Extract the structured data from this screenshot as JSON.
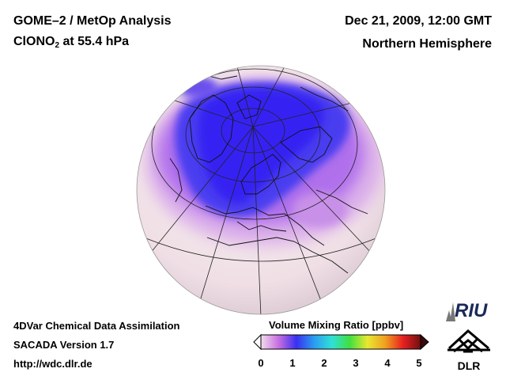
{
  "header": {
    "title_line1": "GOME–2 / MetOp Analysis",
    "species_main": "ClONO",
    "species_sub": "2",
    "species_rest": " at 55.4 hPa",
    "datetime": "Dec 21, 2009, 12:00 GMT",
    "region": "Northern Hemisphere"
  },
  "footer": {
    "line1": "4DVar Chemical Data Assimilation",
    "line2": "SACADA Version 1.7",
    "line3": "http://wdc.dlr.de"
  },
  "colorbar": {
    "title": "Volume Mixing Ratio [ppbv]",
    "ticks": [
      "0",
      "1",
      "2",
      "3",
      "4",
      "5"
    ],
    "stops": [
      "#f2dcef",
      "#c86ee0",
      "#3a30f0",
      "#2a9cf0",
      "#30e0d8",
      "#40e040",
      "#e8e830",
      "#f0a020",
      "#e82020",
      "#701010"
    ]
  },
  "logos": {
    "riu": "RIU",
    "dlr": "DLR"
  },
  "map": {
    "projection": "orthographic",
    "low_region_color": "#3a34ee",
    "background_color": "#f3e6ea"
  }
}
